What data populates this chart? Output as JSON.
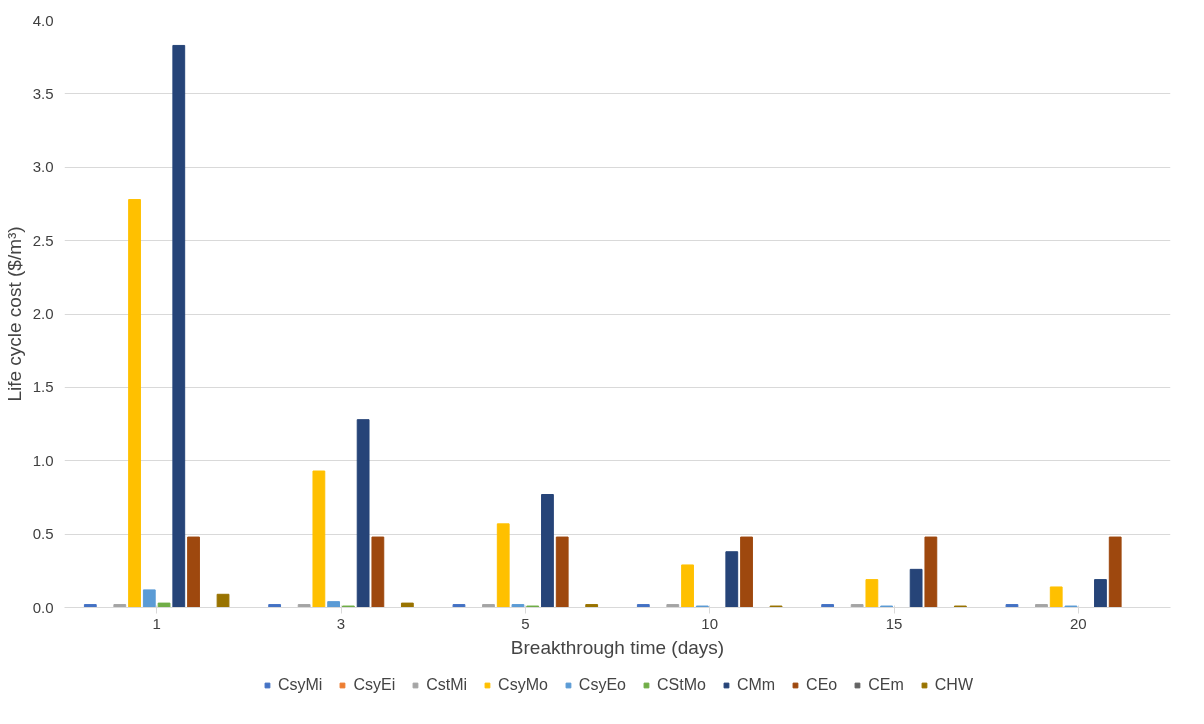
{
  "chart_data": {
    "type": "bar",
    "xlabel": "Breakthrough time (days)",
    "ylabel": "Life cycle cost ($/m³)",
    "categories": [
      "1",
      "3",
      "5",
      "10",
      "15",
      "20"
    ],
    "ylim": [
      0,
      4
    ],
    "yticks": [
      {
        "value": 0,
        "label": "0.0"
      },
      {
        "value": 0.5,
        "label": "0.5"
      },
      {
        "value": 1,
        "label": "1.0"
      },
      {
        "value": 1.5,
        "label": "1.5"
      },
      {
        "value": 2,
        "label": "2.0"
      },
      {
        "value": 2.5,
        "label": "2.5"
      },
      {
        "value": 3,
        "label": "3.0"
      },
      {
        "value": 3.5,
        "label": "3.5"
      },
      {
        "value": 4,
        "label": "4.0"
      }
    ],
    "grid": "y",
    "legend": "bottom",
    "series": [
      {
        "name": "CsyMi",
        "color": "#4472c4",
        "values": [
          0.02,
          0.02,
          0.02,
          0.02,
          0.02,
          0.02
        ]
      },
      {
        "name": "CsyEi",
        "color": "#ed7d31",
        "values": [
          0,
          0,
          0,
          0,
          0,
          0
        ]
      },
      {
        "name": "CstMi",
        "color": "#a5a5a5",
        "values": [
          0.02,
          0.02,
          0.02,
          0.02,
          0.02,
          0.02
        ]
      },
      {
        "name": "CsyMo",
        "color": "#ffc000",
        "values": [
          2.78,
          0.93,
          0.57,
          0.29,
          0.19,
          0.14
        ]
      },
      {
        "name": "CsyEo",
        "color": "#5b9bd5",
        "values": [
          0.12,
          0.04,
          0.02,
          0.01,
          0.01,
          0.01
        ]
      },
      {
        "name": "CStMo",
        "color": "#70ad47",
        "values": [
          0.03,
          0.01,
          0.01,
          0,
          0,
          0
        ]
      },
      {
        "name": "CMm",
        "color": "#264478",
        "values": [
          3.83,
          1.28,
          0.77,
          0.38,
          0.26,
          0.19
        ]
      },
      {
        "name": "CEo",
        "color": "#9e480e",
        "values": [
          0.48,
          0.48,
          0.48,
          0.48,
          0.48,
          0.48
        ]
      },
      {
        "name": "CEm",
        "color": "#636363",
        "values": [
          0,
          0,
          0,
          0,
          0,
          0
        ]
      },
      {
        "name": "CHW",
        "color": "#997300",
        "values": [
          0.09,
          0.03,
          0.02,
          0.01,
          0.01,
          0
        ]
      }
    ]
  }
}
